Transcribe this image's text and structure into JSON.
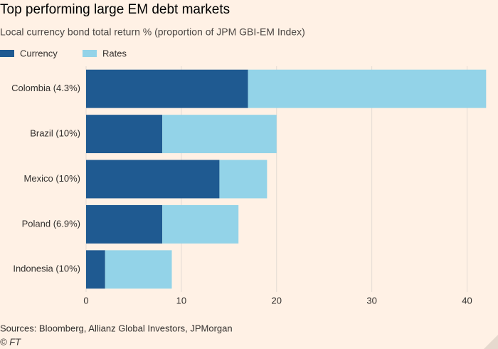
{
  "chart_data": {
    "type": "stacked-barh",
    "title": "Top performing large EM debt markets",
    "subtitle": "Local currency bond total return % (proportion of JPM GBI-EM Index)",
    "categories": [
      "Colombia (4.3%)",
      "Brazil (10%)",
      "Mexico (10%)",
      "Poland (6.9%)",
      "Indonesia (10%)"
    ],
    "series": [
      {
        "name": "Currency",
        "color": "#1f5a91",
        "values": [
          17,
          8,
          14,
          8,
          2
        ]
      },
      {
        "name": "Rates",
        "color": "#93d3e8",
        "values": [
          25,
          12,
          5,
          8,
          7
        ]
      }
    ],
    "xlim": [
      0,
      42.5
    ],
    "xticks": [
      0,
      10,
      20,
      30,
      40
    ],
    "grid": true,
    "source": "Sources: Bloomberg, Allianz Global Investors, JPMorgan",
    "credit": "© FT"
  }
}
